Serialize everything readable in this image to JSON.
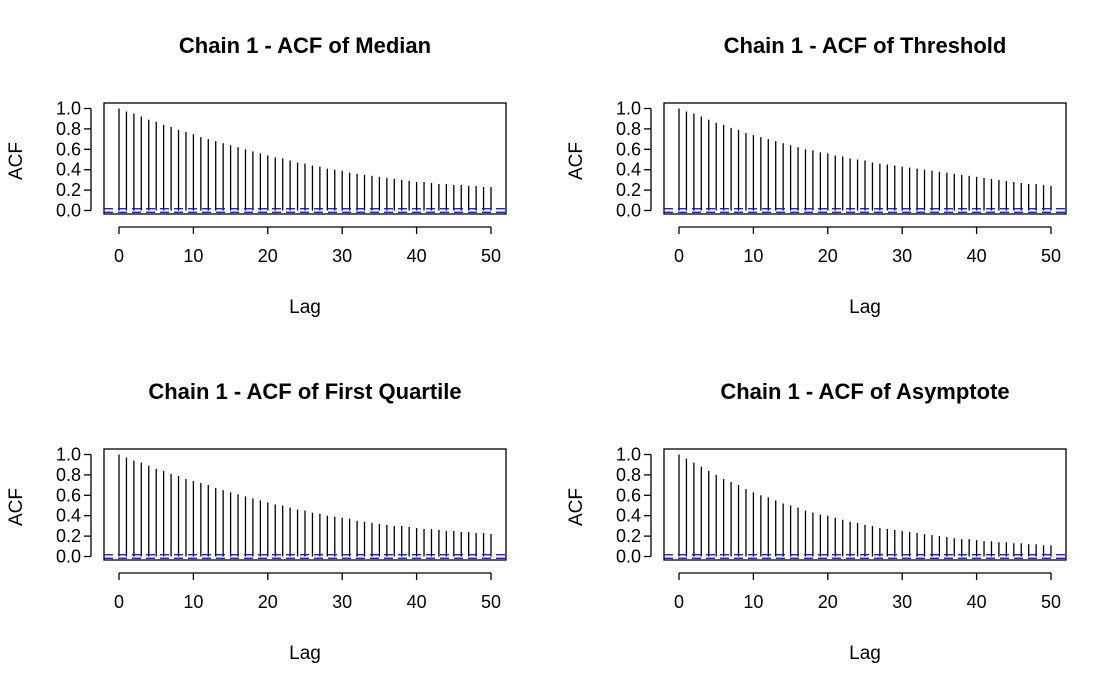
{
  "chart_data": [
    {
      "type": "bar",
      "title": "Chain 1 - ACF of Median",
      "xlabel": "Lag",
      "ylabel": "ACF",
      "x": [
        0,
        1,
        2,
        3,
        4,
        5,
        6,
        7,
        8,
        9,
        10,
        11,
        12,
        13,
        14,
        15,
        16,
        17,
        18,
        19,
        20,
        21,
        22,
        23,
        24,
        25,
        26,
        27,
        28,
        29,
        30,
        31,
        32,
        33,
        34,
        35,
        36,
        37,
        38,
        39,
        40,
        41,
        42,
        43,
        44,
        45,
        46,
        47,
        48,
        49,
        50
      ],
      "values": [
        1.0,
        0.97,
        0.95,
        0.92,
        0.89,
        0.87,
        0.84,
        0.82,
        0.79,
        0.77,
        0.75,
        0.72,
        0.7,
        0.68,
        0.66,
        0.64,
        0.62,
        0.6,
        0.58,
        0.56,
        0.54,
        0.52,
        0.51,
        0.49,
        0.47,
        0.46,
        0.44,
        0.43,
        0.41,
        0.4,
        0.39,
        0.37,
        0.36,
        0.35,
        0.34,
        0.33,
        0.32,
        0.31,
        0.3,
        0.29,
        0.28,
        0.28,
        0.27,
        0.26,
        0.26,
        0.25,
        0.25,
        0.24,
        0.24,
        0.23,
        0.23
      ],
      "conf_limit": 0.017,
      "xlim": [
        0,
        50
      ],
      "ylim": [
        -0.05,
        1.05
      ],
      "xticks": [
        "0",
        "10",
        "20",
        "30",
        "40",
        "50"
      ],
      "yticks": [
        "0.0",
        "0.2",
        "0.4",
        "0.6",
        "0.8",
        "1.0"
      ],
      "bar_color": "#000000",
      "conf_color": "#0000ff"
    },
    {
      "type": "bar",
      "title": "Chain 1 - ACF of Threshold",
      "xlabel": "Lag",
      "ylabel": "ACF",
      "x": [
        0,
        1,
        2,
        3,
        4,
        5,
        6,
        7,
        8,
        9,
        10,
        11,
        12,
        13,
        14,
        15,
        16,
        17,
        18,
        19,
        20,
        21,
        22,
        23,
        24,
        25,
        26,
        27,
        28,
        29,
        30,
        31,
        32,
        33,
        34,
        35,
        36,
        37,
        38,
        39,
        40,
        41,
        42,
        43,
        44,
        45,
        46,
        47,
        48,
        49,
        50
      ],
      "values": [
        1.0,
        0.97,
        0.95,
        0.92,
        0.89,
        0.86,
        0.84,
        0.81,
        0.79,
        0.76,
        0.74,
        0.72,
        0.7,
        0.68,
        0.66,
        0.64,
        0.62,
        0.6,
        0.59,
        0.57,
        0.56,
        0.54,
        0.53,
        0.51,
        0.5,
        0.49,
        0.47,
        0.46,
        0.45,
        0.44,
        0.43,
        0.42,
        0.41,
        0.4,
        0.39,
        0.38,
        0.37,
        0.36,
        0.35,
        0.34,
        0.33,
        0.32,
        0.31,
        0.3,
        0.29,
        0.28,
        0.27,
        0.26,
        0.26,
        0.25,
        0.24
      ],
      "conf_limit": 0.017,
      "xlim": [
        0,
        50
      ],
      "ylim": [
        -0.05,
        1.05
      ],
      "xticks": [
        "0",
        "10",
        "20",
        "30",
        "40",
        "50"
      ],
      "yticks": [
        "0.0",
        "0.2",
        "0.4",
        "0.6",
        "0.8",
        "1.0"
      ],
      "bar_color": "#000000",
      "conf_color": "#0000ff"
    },
    {
      "type": "bar",
      "title": "Chain 1 - ACF of First Quartile",
      "xlabel": "Lag",
      "ylabel": "ACF",
      "x": [
        0,
        1,
        2,
        3,
        4,
        5,
        6,
        7,
        8,
        9,
        10,
        11,
        12,
        13,
        14,
        15,
        16,
        17,
        18,
        19,
        20,
        21,
        22,
        23,
        24,
        25,
        26,
        27,
        28,
        29,
        30,
        31,
        32,
        33,
        34,
        35,
        36,
        37,
        38,
        39,
        40,
        41,
        42,
        43,
        44,
        45,
        46,
        47,
        48,
        49,
        50
      ],
      "values": [
        1.0,
        0.97,
        0.94,
        0.92,
        0.89,
        0.86,
        0.84,
        0.81,
        0.79,
        0.76,
        0.74,
        0.72,
        0.7,
        0.67,
        0.65,
        0.63,
        0.61,
        0.59,
        0.57,
        0.55,
        0.53,
        0.51,
        0.5,
        0.48,
        0.46,
        0.45,
        0.43,
        0.42,
        0.4,
        0.39,
        0.38,
        0.37,
        0.35,
        0.34,
        0.33,
        0.32,
        0.31,
        0.3,
        0.3,
        0.29,
        0.28,
        0.27,
        0.27,
        0.26,
        0.25,
        0.25,
        0.24,
        0.24,
        0.23,
        0.23,
        0.22
      ],
      "conf_limit": 0.017,
      "xlim": [
        0,
        50
      ],
      "ylim": [
        -0.05,
        1.05
      ],
      "xticks": [
        "0",
        "10",
        "20",
        "30",
        "40",
        "50"
      ],
      "yticks": [
        "0.0",
        "0.2",
        "0.4",
        "0.6",
        "0.8",
        "1.0"
      ],
      "bar_color": "#000000",
      "conf_color": "#0000ff"
    },
    {
      "type": "bar",
      "title": "Chain 1 - ACF of Asymptote",
      "xlabel": "Lag",
      "ylabel": "ACF",
      "x": [
        0,
        1,
        2,
        3,
        4,
        5,
        6,
        7,
        8,
        9,
        10,
        11,
        12,
        13,
        14,
        15,
        16,
        17,
        18,
        19,
        20,
        21,
        22,
        23,
        24,
        25,
        26,
        27,
        28,
        29,
        30,
        31,
        32,
        33,
        34,
        35,
        36,
        37,
        38,
        39,
        40,
        41,
        42,
        43,
        44,
        45,
        46,
        47,
        48,
        49,
        50
      ],
      "values": [
        1.0,
        0.96,
        0.92,
        0.88,
        0.84,
        0.8,
        0.76,
        0.73,
        0.7,
        0.66,
        0.63,
        0.6,
        0.58,
        0.55,
        0.52,
        0.5,
        0.48,
        0.45,
        0.43,
        0.41,
        0.4,
        0.38,
        0.36,
        0.34,
        0.33,
        0.31,
        0.3,
        0.28,
        0.27,
        0.26,
        0.25,
        0.24,
        0.23,
        0.22,
        0.21,
        0.2,
        0.19,
        0.18,
        0.17,
        0.17,
        0.16,
        0.15,
        0.15,
        0.14,
        0.14,
        0.13,
        0.13,
        0.12,
        0.12,
        0.11,
        0.11
      ],
      "conf_limit": 0.017,
      "xlim": [
        0,
        50
      ],
      "ylim": [
        -0.05,
        1.05
      ],
      "xticks": [
        "0",
        "10",
        "20",
        "30",
        "40",
        "50"
      ],
      "yticks": [
        "0.0",
        "0.2",
        "0.4",
        "0.6",
        "0.8",
        "1.0"
      ],
      "bar_color": "#000000",
      "conf_color": "#0000ff"
    }
  ]
}
